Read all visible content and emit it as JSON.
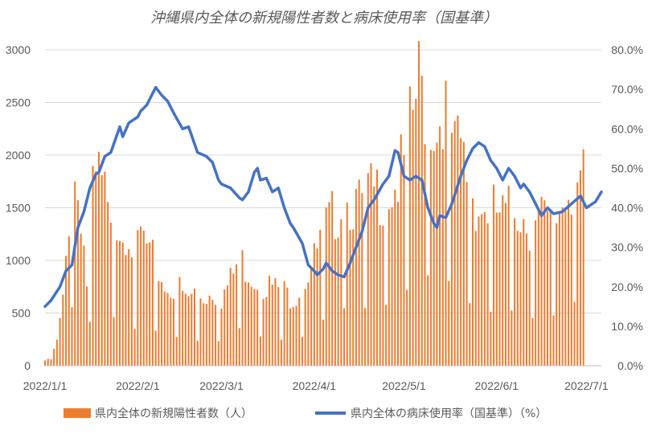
{
  "chart_data": {
    "type": "bar+line",
    "title": "沖縄県内全体の新規陽性者数と病床使用率（国基準）",
    "y_left": {
      "ticks": [
        "0",
        "500",
        "1000",
        "1500",
        "2000",
        "2500",
        "3000"
      ],
      "min": 0,
      "max": 3000
    },
    "y_right": {
      "ticks": [
        "0.0%",
        "10.0%",
        "20.0%",
        "30.0%",
        "40.0%",
        "50.0%",
        "60.0%",
        "70.0%",
        "80.0%"
      ],
      "min": 0,
      "max": 80
    },
    "x_ticks": [
      "2022/1/1",
      "2022/2/1",
      "2022/3/1",
      "2022/4/1",
      "2022/5/1",
      "2022/6/1",
      "2022/7/1"
    ],
    "bar_series": {
      "name": "県内全体の新規陽性者数（人）",
      "color": "#ED7D31",
      "anchors": [
        [
          "2022-01-01",
          50
        ],
        [
          "2022-01-03",
          60
        ],
        [
          "2022-01-05",
          230
        ],
        [
          "2022-01-07",
          600
        ],
        [
          "2022-01-09",
          1420
        ],
        [
          "2022-01-11",
          1760
        ],
        [
          "2022-01-13",
          1500
        ],
        [
          "2022-01-15",
          780
        ],
        [
          "2022-01-17",
          1600
        ],
        [
          "2022-01-19",
          1800
        ],
        [
          "2022-01-21",
          1600
        ],
        [
          "2022-01-23",
          1200
        ],
        [
          "2022-01-25",
          1440
        ],
        [
          "2022-01-27",
          1300
        ],
        [
          "2022-01-29",
          1330
        ],
        [
          "2022-01-31",
          1000
        ],
        [
          "2022-02-02",
          1250
        ],
        [
          "2022-02-05",
          1050
        ],
        [
          "2022-02-08",
          900
        ],
        [
          "2022-02-11",
          700
        ],
        [
          "2022-02-14",
          780
        ],
        [
          "2022-02-17",
          620
        ],
        [
          "2022-02-20",
          690
        ],
        [
          "2022-02-23",
          650
        ],
        [
          "2022-02-26",
          700
        ],
        [
          "2022-03-01",
          650
        ],
        [
          "2022-03-04",
          800
        ],
        [
          "2022-03-07",
          1020
        ],
        [
          "2022-03-10",
          900
        ],
        [
          "2022-03-13",
          800
        ],
        [
          "2022-03-16",
          780
        ],
        [
          "2022-03-19",
          730
        ],
        [
          "2022-03-22",
          700
        ],
        [
          "2022-03-25",
          650
        ],
        [
          "2022-03-28",
          780
        ],
        [
          "2022-04-01",
          1000
        ],
        [
          "2022-04-04",
          1250
        ],
        [
          "2022-04-07",
          1400
        ],
        [
          "2022-04-10",
          1550
        ],
        [
          "2022-04-13",
          1580
        ],
        [
          "2022-04-16",
          1500
        ],
        [
          "2022-04-19",
          1600
        ],
        [
          "2022-04-22",
          1650
        ],
        [
          "2022-04-25",
          1650
        ],
        [
          "2022-04-28",
          1700
        ],
        [
          "2022-05-01",
          1900
        ],
        [
          "2022-05-04",
          2380
        ],
        [
          "2022-05-06",
          2690
        ],
        [
          "2022-05-08",
          2500
        ],
        [
          "2022-05-10",
          2400
        ],
        [
          "2022-05-12",
          2200
        ],
        [
          "2022-05-14",
          2560
        ],
        [
          "2022-05-16",
          2300
        ],
        [
          "2022-05-18",
          2000
        ],
        [
          "2022-05-20",
          2080
        ],
        [
          "2022-05-23",
          1700
        ],
        [
          "2022-05-26",
          1500
        ],
        [
          "2022-05-29",
          1470
        ],
        [
          "2022-06-01",
          1450
        ],
        [
          "2022-06-04",
          1400
        ],
        [
          "2022-06-07",
          1550
        ],
        [
          "2022-06-10",
          1420
        ],
        [
          "2022-06-13",
          1300
        ],
        [
          "2022-06-16",
          1400
        ],
        [
          "2022-06-19",
          1300
        ],
        [
          "2022-06-22",
          1500
        ],
        [
          "2022-06-25",
          1700
        ],
        [
          "2022-06-28",
          1750
        ],
        [
          "2022-06-30",
          1720
        ]
      ],
      "low_days": [
        "2022-01-10",
        "2022-01-16",
        "2022-01-24",
        "2022-01-31",
        "2022-02-07",
        "2022-02-14",
        "2022-02-21",
        "2022-02-28",
        "2022-03-07",
        "2022-03-14",
        "2022-03-21",
        "2022-03-28",
        "2022-04-04",
        "2022-04-11",
        "2022-04-18",
        "2022-04-25",
        "2022-05-02",
        "2022-05-09",
        "2022-05-16",
        "2022-05-23",
        "2022-05-30",
        "2022-06-06",
        "2022-06-13",
        "2022-06-20",
        "2022-06-27"
      ]
    },
    "line_series": {
      "name": "県内全体の病床使用率（国基準）（%）",
      "color": "#4472C4",
      "points": [
        [
          "2022-01-01",
          15.0
        ],
        [
          "2022-01-03",
          16.5
        ],
        [
          "2022-01-06",
          20.0
        ],
        [
          "2022-01-08",
          24.0
        ],
        [
          "2022-01-10",
          25.5
        ],
        [
          "2022-01-12",
          35.0
        ],
        [
          "2022-01-14",
          39.0
        ],
        [
          "2022-01-16",
          45.0
        ],
        [
          "2022-01-18",
          48.5
        ],
        [
          "2022-01-19",
          49.0
        ],
        [
          "2022-01-21",
          53.0
        ],
        [
          "2022-01-23",
          54.0
        ],
        [
          "2022-01-26",
          60.5
        ],
        [
          "2022-01-27",
          58.0
        ],
        [
          "2022-01-29",
          61.5
        ],
        [
          "2022-02-01",
          63.0
        ],
        [
          "2022-02-02",
          64.5
        ],
        [
          "2022-02-04",
          66.0
        ],
        [
          "2022-02-07",
          70.5
        ],
        [
          "2022-02-09",
          68.5
        ],
        [
          "2022-02-11",
          67.0
        ],
        [
          "2022-02-13",
          64.0
        ],
        [
          "2022-02-16",
          60.0
        ],
        [
          "2022-02-18",
          60.5
        ],
        [
          "2022-02-21",
          54.0
        ],
        [
          "2022-02-24",
          53.0
        ],
        [
          "2022-02-26",
          51.5
        ],
        [
          "2022-02-28",
          47.0
        ],
        [
          "2022-03-01",
          46.0
        ],
        [
          "2022-03-04",
          45.0
        ],
        [
          "2022-03-07",
          42.5
        ],
        [
          "2022-03-08",
          42.0
        ],
        [
          "2022-03-10",
          44.0
        ],
        [
          "2022-03-12",
          49.0
        ],
        [
          "2022-03-13",
          50.0
        ],
        [
          "2022-03-14",
          47.0
        ],
        [
          "2022-03-16",
          47.5
        ],
        [
          "2022-03-18",
          44.0
        ],
        [
          "2022-03-20",
          45.0
        ],
        [
          "2022-03-22",
          40.0
        ],
        [
          "2022-03-24",
          36.0
        ],
        [
          "2022-03-25",
          35.0
        ],
        [
          "2022-03-28",
          31.0
        ],
        [
          "2022-03-30",
          25.5
        ],
        [
          "2022-04-01",
          24.0
        ],
        [
          "2022-04-02",
          23.0
        ],
        [
          "2022-04-04",
          24.5
        ],
        [
          "2022-04-05",
          26.0
        ],
        [
          "2022-04-07",
          24.0
        ],
        [
          "2022-04-09",
          23.0
        ],
        [
          "2022-04-11",
          22.5
        ],
        [
          "2022-04-13",
          26.0
        ],
        [
          "2022-04-15",
          30.0
        ],
        [
          "2022-04-17",
          34.0
        ],
        [
          "2022-04-19",
          40.0
        ],
        [
          "2022-04-21",
          42.0
        ],
        [
          "2022-04-24",
          46.0
        ],
        [
          "2022-04-26",
          48.0
        ],
        [
          "2022-04-28",
          54.5
        ],
        [
          "2022-04-29",
          54.0
        ],
        [
          "2022-05-01",
          48.0
        ],
        [
          "2022-05-03",
          47.0
        ],
        [
          "2022-05-05",
          48.0
        ],
        [
          "2022-05-07",
          47.0
        ],
        [
          "2022-05-09",
          40.0
        ],
        [
          "2022-05-11",
          36.0
        ],
        [
          "2022-05-12",
          35.0
        ],
        [
          "2022-05-13",
          38.0
        ],
        [
          "2022-05-15",
          37.5
        ],
        [
          "2022-05-17",
          41.0
        ],
        [
          "2022-05-20",
          48.0
        ],
        [
          "2022-05-22",
          52.0
        ],
        [
          "2022-05-24",
          55.0
        ],
        [
          "2022-05-26",
          56.5
        ],
        [
          "2022-05-28",
          55.5
        ],
        [
          "2022-05-30",
          52.0
        ],
        [
          "2022-06-01",
          50.0
        ],
        [
          "2022-06-03",
          47.0
        ],
        [
          "2022-06-05",
          50.0
        ],
        [
          "2022-06-07",
          48.0
        ],
        [
          "2022-06-09",
          45.0
        ],
        [
          "2022-06-10",
          46.0
        ],
        [
          "2022-06-12",
          44.0
        ],
        [
          "2022-06-14",
          41.0
        ],
        [
          "2022-06-16",
          38.0
        ],
        [
          "2022-06-18",
          40.0
        ],
        [
          "2022-06-20",
          38.5
        ],
        [
          "2022-06-23",
          39.0
        ],
        [
          "2022-06-26",
          41.0
        ],
        [
          "2022-06-29",
          43.0
        ],
        [
          "2022-07-01",
          40.0
        ],
        [
          "2022-07-04",
          41.5
        ],
        [
          "2022-07-06",
          44.0
        ]
      ]
    },
    "legend": {
      "position": "bottom"
    },
    "grid": true
  }
}
